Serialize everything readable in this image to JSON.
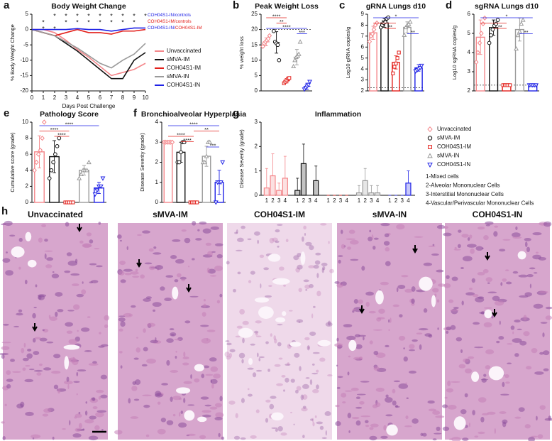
{
  "chart_data": [
    {
      "panel": "a",
      "type": "line",
      "title": "Body Weight Change",
      "x_label": "Days Post Challenge",
      "y_label": "% Body Weight Change",
      "x": [
        0,
        1,
        2,
        3,
        4,
        5,
        6,
        7,
        8,
        9,
        10
      ],
      "xlim": [
        0,
        10
      ],
      "xticks": [
        0,
        1,
        2,
        3,
        4,
        5,
        6,
        7,
        8,
        9,
        10
      ],
      "ylim": [
        -20,
        5
      ],
      "yticks": [
        -20,
        -15,
        -10,
        -5,
        0,
        5
      ],
      "series": [
        {
          "name": "Unvaccinated",
          "color": "#f4868a",
          "values": [
            0,
            0,
            -1,
            -3.5,
            -6.5,
            -9,
            -12,
            -15,
            -14,
            -13,
            -11
          ]
        },
        {
          "name": "sMVA-IM",
          "color": "#111111",
          "values": [
            0,
            -1,
            -2,
            -4.5,
            -7,
            -10,
            -13,
            -16,
            -16,
            -10,
            -7.5
          ]
        },
        {
          "name": "COH04S1-IM",
          "color": "#e3201b",
          "values": [
            0,
            -1,
            -2,
            -1,
            0,
            -1,
            -1,
            -1.5,
            -0.5,
            -0.5,
            0
          ]
        },
        {
          "name": "sMVA-IN",
          "color": "#9a9a9a",
          "values": [
            0,
            -1,
            -2,
            -4,
            -6,
            -8.5,
            -11,
            -12.5,
            -10,
            -8,
            -4.5
          ]
        },
        {
          "name": "COH04S1-IN",
          "color": "#1f22e6",
          "values": [
            0,
            0,
            0,
            0,
            0.3,
            0,
            0,
            -0.5,
            0,
            0.5,
            0.5
          ]
        }
      ],
      "significance": [
        {
          "symbol": "*",
          "color": "#1f22e6",
          "x": [
            2,
            3,
            4,
            5,
            6,
            7,
            8,
            9,
            10
          ],
          "label_parts": [
            {
              "text": "COH04S1-IN/controls",
              "color": "#1f22e6"
            }
          ]
        },
        {
          "symbol": "*",
          "color": "#e3201b",
          "x": [
            1,
            3,
            4,
            5,
            6,
            7,
            8,
            9
          ],
          "label_parts": [
            {
              "text": "COH04S1-IM/controls",
              "color": "#e3201b"
            }
          ]
        },
        {
          "symbol": "*",
          "color": "#1f22e6",
          "x": [
            1,
            2
          ],
          "label_parts": [
            {
              "text": "COH04S1-IN/",
              "color": "#1f22e6"
            },
            {
              "text": "COH04S1-IM",
              "color": "#e3201b"
            }
          ]
        }
      ]
    },
    {
      "panel": "b",
      "type": "dotplot",
      "title": "Peak Weight Loss",
      "y_label": "% weight loss",
      "ylim": [
        0,
        25
      ],
      "yticks": [
        0,
        5,
        10,
        15,
        20,
        25
      ],
      "ref": 20,
      "groups": [
        {
          "color": "#f4868a",
          "marker": "diamond",
          "points": [
            14.5,
            15.5,
            16,
            16.5,
            17,
            18
          ],
          "mean": 16,
          "error": 1.3
        },
        {
          "color": "#111111",
          "marker": "circle",
          "points": [
            19.5,
            16,
            15.5,
            15,
            10
          ],
          "mean": 15.8,
          "error": 3.5
        },
        {
          "color": "#e3201b",
          "marker": "square",
          "points": [
            2.5,
            3,
            3.5,
            4,
            4.2
          ],
          "mean": 3.3,
          "error": 0.7
        },
        {
          "color": "#9a9a9a",
          "marker": "triangle",
          "points": [
            8,
            10,
            11,
            11.5,
            12,
            16
          ],
          "mean": 11,
          "error": 2.5
        },
        {
          "color": "#1f22e6",
          "marker": "triangle-down",
          "points": [
            0.5,
            1,
            1.5,
            2,
            3
          ],
          "mean": 1.5,
          "error": 1
        }
      ],
      "comparisons": [
        {
          "label": "****",
          "color": "#e3201b",
          "from": 0,
          "to": 2
        },
        {
          "label": "**",
          "color": "#e3201b",
          "from": 1,
          "to": 2
        },
        {
          "label": "****",
          "color": "#1f22e6",
          "from": 0,
          "to": 4
        },
        {
          "label": "***",
          "color": "#1f22e6",
          "from": 3,
          "to": 4
        }
      ]
    },
    {
      "panel": "c",
      "type": "bar",
      "title": "gRNA Lungs d10",
      "y_label": "Log10 gRNA copies/g",
      "ylim": [
        2,
        9
      ],
      "yticks": [
        2,
        3,
        4,
        5,
        6,
        7,
        8,
        9
      ],
      "ref": 2.3,
      "groups": [
        {
          "color": "#f4868a",
          "marker": "diamond",
          "points": [
            6.5,
            7,
            7.2,
            7.6,
            8,
            8.2
          ],
          "mean": 7.3,
          "error": 0.6
        },
        {
          "color": "#111111",
          "marker": "circle",
          "points": [
            7.8,
            8,
            8.2,
            8.3,
            8.6,
            8.7
          ],
          "mean": 8.2,
          "error": 0.4
        },
        {
          "color": "#e3201b",
          "marker": "square",
          "points": [
            3.6,
            4.2,
            4.5,
            5,
            5.5
          ],
          "mean": 4.6,
          "error": 0.6
        },
        {
          "color": "#9a9a9a",
          "marker": "triangle",
          "points": [
            7.1,
            7.8,
            8,
            8.1,
            8.3
          ],
          "mean": 7.8,
          "error": 0.5
        },
        {
          "color": "#1f22e6",
          "marker": "triangle-down",
          "points": [
            3.8,
            3.9,
            4,
            4.1,
            4.3
          ],
          "mean": 4.1,
          "error": 0.3
        }
      ],
      "comparisons": [
        {
          "label": "*",
          "color": "#1f22e6",
          "from": 0,
          "to": 4
        },
        {
          "label": "***",
          "color": "#e3201b",
          "from": 0,
          "to": 2
        },
        {
          "label": "**",
          "color": "#e3201b",
          "from": 1,
          "to": 2
        },
        {
          "label": "**",
          "color": "#1f22e6",
          "from": 3,
          "to": 4
        }
      ]
    },
    {
      "panel": "d",
      "type": "bar",
      "title": "sgRNA Lungs d10",
      "y_label": "Log10 sgRNA copies/g",
      "ylim": [
        2,
        6
      ],
      "yticks": [
        2,
        3,
        4,
        5,
        6
      ],
      "ref": 2.3,
      "groups": [
        {
          "color": "#f4868a",
          "marker": "diamond",
          "points": [
            3.5,
            4,
            4.5,
            5,
            5.5,
            5.8
          ],
          "mean": 4.8,
          "error": 0.9
        },
        {
          "color": "#111111",
          "marker": "circle",
          "points": [
            4.5,
            4.9,
            5.2,
            5.4,
            5.5,
            5.7
          ],
          "mean": 5.3,
          "error": 0.4
        },
        {
          "color": "#e3201b",
          "marker": "square",
          "points": [
            2.3,
            2.3,
            2.3,
            2.3,
            2.3
          ],
          "mean": 2.3,
          "error": 0
        },
        {
          "color": "#9a9a9a",
          "marker": "triangle",
          "points": [
            4.2,
            4.9,
            5.1,
            5.5,
            5.7
          ],
          "mean": 5.2,
          "error": 0.6
        },
        {
          "color": "#1f22e6",
          "marker": "triangle-down",
          "points": [
            2.3,
            2.3,
            2.3,
            2.3,
            2.3
          ],
          "mean": 2.3,
          "error": 0
        }
      ],
      "comparisons": [
        {
          "label": "*",
          "color": "#1f22e6",
          "from": 0,
          "to": 4
        },
        {
          "label": "*",
          "color": "#e3201b",
          "from": 0,
          "to": 2
        },
        {
          "label": "**",
          "color": "#e3201b",
          "from": 1,
          "to": 2
        },
        {
          "label": "**",
          "color": "#1f22e6",
          "from": 3,
          "to": 4
        }
      ]
    },
    {
      "panel": "e",
      "type": "bar",
      "title": "Pathology Score",
      "y_label": "Cumulative score (grade)",
      "ylim": [
        0,
        10
      ],
      "yticks": [
        0,
        2,
        4,
        6,
        8,
        10
      ],
      "groups": [
        {
          "color": "#f4868a",
          "marker": "diamond",
          "points": [
            4,
            5,
            6,
            6.5,
            8,
            10
          ],
          "mean": 6.3,
          "error": 2
        },
        {
          "color": "#111111",
          "marker": "circle",
          "points": [
            3,
            4,
            5,
            6,
            7,
            8
          ],
          "mean": 5.7,
          "error": 2
        },
        {
          "color": "#e3201b",
          "marker": "square",
          "points": [
            0,
            0,
            0,
            0,
            0
          ],
          "mean": 0,
          "error": 0
        },
        {
          "color": "#9a9a9a",
          "marker": "triangle",
          "points": [
            3,
            3.5,
            4,
            4,
            4,
            5
          ],
          "mean": 4,
          "error": 0.6
        },
        {
          "color": "#1f22e6",
          "marker": "triangle-down",
          "points": [
            1,
            1.5,
            2,
            2,
            3
          ],
          "mean": 1.8,
          "error": 0.7
        }
      ],
      "comparisons": [
        {
          "label": "****",
          "color": "#1f22e6",
          "from": 0,
          "to": 4
        },
        {
          "label": "****",
          "color": "#e3201b",
          "from": 0,
          "to": 2
        },
        {
          "label": "****",
          "color": "#e3201b",
          "from": 1,
          "to": 2
        }
      ]
    },
    {
      "panel": "f",
      "type": "bar",
      "title": "Bronchioalveolar Hyperplasia",
      "y_label": "Disease Severity (grade)",
      "ylim": [
        0,
        4
      ],
      "yticks": [
        0,
        1,
        2,
        3,
        4
      ],
      "groups": [
        {
          "color": "#f4868a",
          "marker": "diamond",
          "points": [
            3,
            3,
            3,
            3,
            3,
            3
          ],
          "mean": 3,
          "error": 0
        },
        {
          "color": "#111111",
          "marker": "circle",
          "points": [
            2,
            2,
            2.5,
            3,
            3
          ],
          "mean": 2.5,
          "error": 0.5
        },
        {
          "color": "#e3201b",
          "marker": "square",
          "points": [
            0,
            0,
            0,
            0,
            0
          ],
          "mean": 0,
          "error": 0
        },
        {
          "color": "#9a9a9a",
          "marker": "triangle",
          "points": [
            2,
            2,
            2.3,
            3,
            3
          ],
          "mean": 2.3,
          "error": 0.5
        },
        {
          "color": "#1f22e6",
          "marker": "triangle-down",
          "points": [
            0,
            1,
            1,
            1,
            2
          ],
          "mean": 1,
          "error": 0.6
        }
      ],
      "comparisons": [
        {
          "label": "****",
          "color": "#1f22e6",
          "from": 0,
          "to": 4
        },
        {
          "label": "**",
          "color": "#e3201b",
          "from": 2,
          "to": 4
        },
        {
          "label": "****",
          "color": "#e3201b",
          "from": 0,
          "to": 2
        },
        {
          "label": "****",
          "color": "#e3201b",
          "from": 1,
          "to": 2
        },
        {
          "label": "***",
          "color": "#1f22e6",
          "from": 3,
          "to": 4
        }
      ]
    },
    {
      "panel": "g",
      "type": "grouped_bar",
      "title": "Inflammation",
      "y_label": "Disease Severity (grade)",
      "ylim": [
        0,
        3
      ],
      "yticks": [
        0,
        1,
        2,
        3
      ],
      "categories": [
        "1",
        "2",
        "3",
        "4"
      ],
      "series": [
        {
          "name": "Unvaccinated",
          "color": "#f4868a",
          "marker": "diamond",
          "values": [
            0.3,
            0.8,
            0.2,
            0.7
          ],
          "errors": [
            0.8,
            0.9,
            0.3,
            0.9
          ]
        },
        {
          "name": "sMVA-IM",
          "color": "#111111",
          "marker": "circle",
          "values": [
            0.2,
            1.3,
            0,
            0.6
          ],
          "errors": [
            0.5,
            0.8,
            0,
            0.6
          ]
        },
        {
          "name": "COH04S1-IM",
          "color": "#e3201b",
          "marker": "square",
          "values": [
            0,
            0,
            0,
            0
          ],
          "errors": [
            0,
            0,
            0,
            0
          ]
        },
        {
          "name": "sMVA-IN",
          "color": "#9a9a9a",
          "marker": "triangle",
          "values": [
            0.1,
            0.6,
            0.1,
            0.1
          ],
          "errors": [
            0.3,
            0.5,
            0.3,
            0.3
          ]
        },
        {
          "name": "COH04S1-IN",
          "color": "#1f22e6",
          "marker": "triangle-down",
          "values": [
            0,
            0,
            0,
            0.5
          ],
          "errors": [
            0,
            0,
            0,
            0.5
          ]
        }
      ],
      "notes": [
        "1-Mixed cells",
        "2-Alveolar Mononuclear Cells",
        "3-Interstitial Mononuclear Cells",
        "4-Vascular/Perivascular Mononuclear Cells"
      ]
    }
  ],
  "histology": {
    "panel": "h",
    "titles": [
      "Unvaccinated",
      "sMVA-IM",
      "COH04S1-IM",
      "sMVA-IN",
      "COH04S1-IN"
    ]
  }
}
